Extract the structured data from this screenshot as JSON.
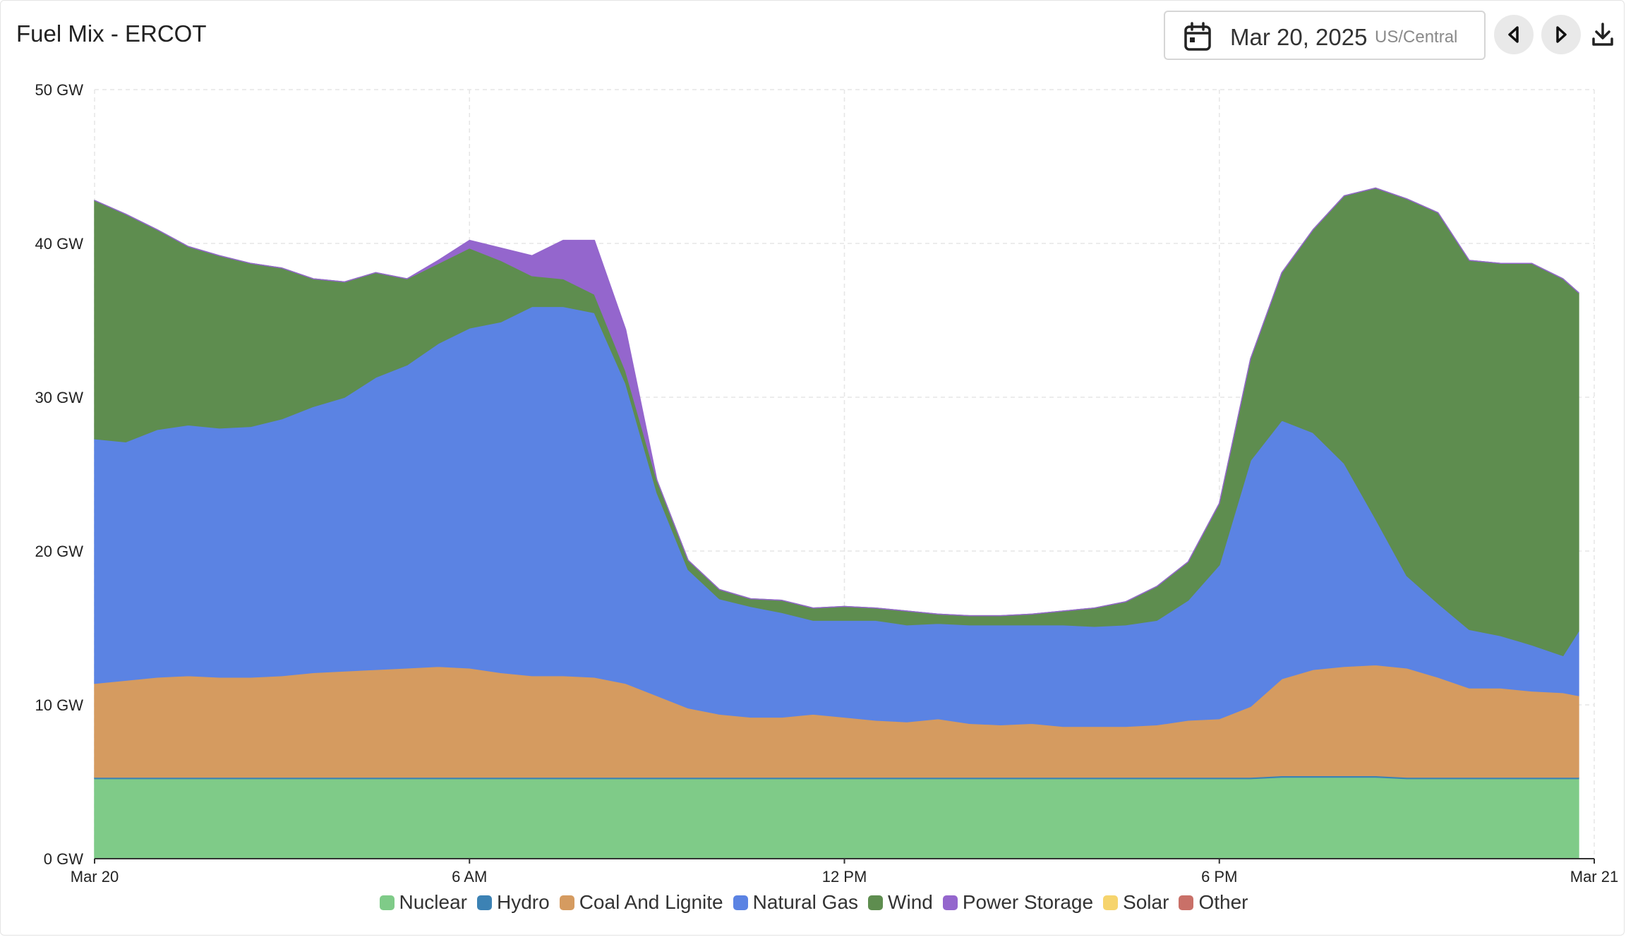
{
  "header": {
    "title": "Fuel Mix - ERCOT",
    "date": "Mar 20, 2025",
    "timezone": "US/Central",
    "icons": [
      "calendar-icon",
      "caret-left-icon",
      "caret-right-icon",
      "download-icon"
    ]
  },
  "chart_data": {
    "type": "area",
    "stacked": true,
    "x_unit": "hour",
    "x": [
      0,
      0.5,
      1,
      1.5,
      2,
      2.5,
      3,
      3.5,
      4,
      4.5,
      5,
      5.5,
      6,
      6.5,
      7,
      7.5,
      8,
      8.5,
      9,
      9.5,
      10,
      10.5,
      11,
      11.5,
      12,
      12.5,
      13,
      13.5,
      14,
      14.5,
      15,
      15.5,
      16,
      16.5,
      17,
      17.5,
      18,
      18.5,
      19,
      19.5,
      20,
      20.5,
      21,
      21.5,
      22,
      22.5,
      23,
      23.5,
      23.75
    ],
    "x_ticks": [
      "Mar 20",
      "6 AM",
      "12 PM",
      "6 PM",
      "Mar 21"
    ],
    "x_tick_positions": [
      0,
      6,
      12,
      18,
      24
    ],
    "y_ticks": [
      "0 GW",
      "10 GW",
      "20 GW",
      "30 GW",
      "40 GW",
      "50 GW"
    ],
    "ylim": [
      0,
      50
    ],
    "xlim": [
      0,
      24
    ],
    "grid": true,
    "legend_position": "bottom",
    "series": [
      {
        "name": "Nuclear",
        "color": "#7fcb88",
        "values": [
          5.2,
          5.2,
          5.2,
          5.2,
          5.2,
          5.2,
          5.2,
          5.2,
          5.2,
          5.2,
          5.2,
          5.2,
          5.2,
          5.2,
          5.2,
          5.2,
          5.2,
          5.2,
          5.2,
          5.2,
          5.2,
          5.2,
          5.2,
          5.2,
          5.2,
          5.2,
          5.2,
          5.2,
          5.2,
          5.2,
          5.2,
          5.2,
          5.2,
          5.2,
          5.2,
          5.2,
          5.2,
          5.2,
          5.3,
          5.3,
          5.3,
          5.3,
          5.2,
          5.2,
          5.2,
          5.2,
          5.2,
          5.2,
          5.2
        ]
      },
      {
        "name": "Hydro",
        "color": "#3c82b4",
        "values": [
          0.1,
          0.1,
          0.1,
          0.1,
          0.1,
          0.1,
          0.1,
          0.1,
          0.1,
          0.1,
          0.1,
          0.1,
          0.1,
          0.1,
          0.1,
          0.1,
          0.1,
          0.1,
          0.1,
          0.1,
          0.1,
          0.1,
          0.1,
          0.1,
          0.1,
          0.1,
          0.1,
          0.1,
          0.1,
          0.1,
          0.1,
          0.1,
          0.1,
          0.1,
          0.1,
          0.1,
          0.1,
          0.1,
          0.1,
          0.1,
          0.1,
          0.1,
          0.1,
          0.1,
          0.1,
          0.1,
          0.1,
          0.1,
          0.1
        ]
      },
      {
        "name": "Coal And Lignite",
        "color": "#d59b60",
        "values": [
          6.1,
          6.3,
          6.5,
          6.6,
          6.5,
          6.5,
          6.6,
          6.8,
          6.9,
          7.0,
          7.1,
          7.2,
          7.1,
          6.8,
          6.6,
          6.6,
          6.5,
          6.1,
          5.3,
          4.5,
          4.1,
          3.9,
          3.9,
          4.1,
          3.9,
          3.7,
          3.6,
          3.8,
          3.5,
          3.4,
          3.5,
          3.3,
          3.3,
          3.3,
          3.4,
          3.7,
          3.8,
          4.6,
          6.3,
          6.9,
          7.1,
          7.2,
          7.1,
          6.5,
          5.8,
          5.8,
          5.6,
          5.5,
          5.3
        ]
      },
      {
        "name": "Natural Gas",
        "color": "#5b83e3",
        "values": [
          15.9,
          15.5,
          16.1,
          16.3,
          16.2,
          16.3,
          16.7,
          17.3,
          17.8,
          19.0,
          19.7,
          21.0,
          22.1,
          22.8,
          24.0,
          24.0,
          23.7,
          19.5,
          13.2,
          9.0,
          7.5,
          7.2,
          6.8,
          6.1,
          6.3,
          6.5,
          6.3,
          6.2,
          6.4,
          6.5,
          6.4,
          6.6,
          6.5,
          6.6,
          6.8,
          7.8,
          10.0,
          16.0,
          16.8,
          15.4,
          13.2,
          9.5,
          6.0,
          4.8,
          3.8,
          3.4,
          3.0,
          2.4,
          4.2
        ]
      },
      {
        "name": "Wind",
        "color": "#5e8d4f",
        "values": [
          15.5,
          14.8,
          13.0,
          11.6,
          11.2,
          10.6,
          9.8,
          8.3,
          7.5,
          6.8,
          5.6,
          5.2,
          5.2,
          4.0,
          2.0,
          1.8,
          1.2,
          0.8,
          0.8,
          0.6,
          0.6,
          0.5,
          0.8,
          0.8,
          0.9,
          0.8,
          0.9,
          0.6,
          0.6,
          0.6,
          0.7,
          0.9,
          1.2,
          1.5,
          2.2,
          2.5,
          4.0,
          6.6,
          9.6,
          13.2,
          17.4,
          21.5,
          24.5,
          25.4,
          24.0,
          24.2,
          24.8,
          24.5,
          22.0
        ]
      },
      {
        "name": "Power Storage",
        "color": "#9466cd",
        "values": [
          0,
          0,
          0,
          0,
          0,
          0,
          0,
          0,
          0,
          0,
          0,
          0.2,
          0.5,
          0.8,
          1.3,
          2.5,
          3.5,
          2.7,
          0,
          0,
          0,
          0,
          0,
          0,
          0,
          0,
          0,
          0,
          0,
          0,
          0,
          0,
          0,
          0,
          0,
          0,
          0,
          0,
          0,
          0,
          0,
          0,
          0,
          0,
          0,
          0,
          0,
          0,
          0
        ]
      },
      {
        "name": "Solar",
        "color": "#f6d46d",
        "values": [
          0,
          0,
          0,
          0,
          0,
          0,
          0,
          0,
          0,
          0,
          0,
          0,
          0,
          0,
          0,
          0,
          0,
          0,
          0,
          0,
          0,
          0,
          0,
          0,
          0,
          0,
          0,
          0,
          0,
          0,
          0,
          0,
          0,
          0,
          0,
          0,
          0,
          0,
          0,
          0,
          0,
          0,
          0,
          0,
          0,
          0,
          0,
          0,
          0
        ]
      },
      {
        "name": "Other",
        "color": "#c97068",
        "values": [
          0,
          0,
          0,
          0,
          0,
          0,
          0,
          0,
          0,
          0,
          0,
          0,
          0,
          0,
          0,
          0,
          0,
          0,
          0,
          0,
          0,
          0,
          0,
          0,
          0,
          0,
          0,
          0,
          0,
          0,
          0,
          0,
          0,
          0,
          0,
          0,
          0,
          0,
          0,
          0,
          0,
          0,
          0,
          0,
          0,
          0,
          0,
          0,
          0
        ]
      }
    ]
  }
}
